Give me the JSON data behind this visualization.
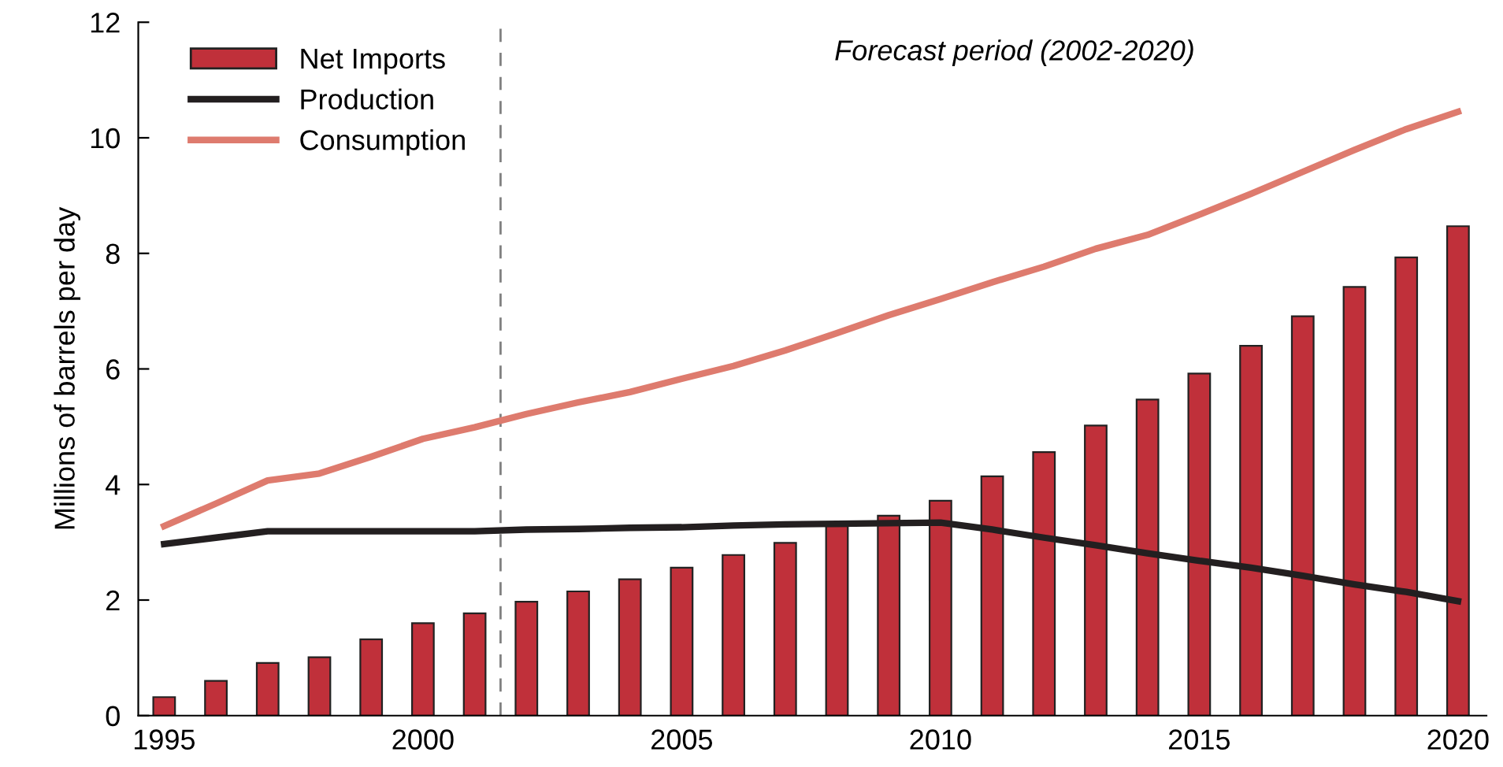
{
  "chart_data": {
    "type": "bar",
    "ylabel": "Millions of barrels per day",
    "x": [
      1995,
      1996,
      1997,
      1998,
      1999,
      2000,
      2001,
      2002,
      2003,
      2004,
      2005,
      2006,
      2007,
      2008,
      2009,
      2010,
      2011,
      2012,
      2013,
      2014,
      2015,
      2016,
      2017,
      2018,
      2019,
      2020
    ],
    "series": [
      {
        "name": "Net Imports",
        "type": "bar",
        "color": "#c0303a",
        "values": [
          0.32,
          0.6,
          0.91,
          1.01,
          1.32,
          1.6,
          1.77,
          1.97,
          2.15,
          2.36,
          2.56,
          2.78,
          2.99,
          3.28,
          3.46,
          3.72,
          4.14,
          4.56,
          5.02,
          5.47,
          5.92,
          6.4,
          6.91,
          7.42,
          7.93,
          8.47
        ]
      },
      {
        "name": "Production",
        "type": "line",
        "color": "#231f20",
        "values": [
          2.97,
          3.08,
          3.19,
          3.19,
          3.19,
          3.19,
          3.19,
          3.22,
          3.23,
          3.25,
          3.26,
          3.29,
          3.31,
          3.32,
          3.33,
          3.34,
          3.22,
          3.08,
          2.95,
          2.81,
          2.68,
          2.56,
          2.42,
          2.27,
          2.14,
          1.98
        ]
      },
      {
        "name": "Consumption",
        "type": "line",
        "color": "#de7b6e",
        "values": [
          3.28,
          3.67,
          4.07,
          4.19,
          4.48,
          4.79,
          4.99,
          5.22,
          5.42,
          5.6,
          5.83,
          6.05,
          6.32,
          6.62,
          6.93,
          7.21,
          7.5,
          7.77,
          8.08,
          8.32,
          8.67,
          9.03,
          9.41,
          9.79,
          10.15,
          10.45
        ]
      }
    ],
    "xlim": [
      1994.5,
      2020.55
    ],
    "xticks": [
      1995,
      2000,
      2005,
      2010,
      2015,
      2020
    ],
    "ylim": [
      0,
      12
    ],
    "yticks": [
      0,
      2,
      4,
      6,
      8,
      10,
      12
    ],
    "ref_lines": [
      {
        "axis": "x",
        "value": 2001.5,
        "label": null,
        "color": "#808080",
        "line_style": "dashed"
      }
    ],
    "annotations": [
      "Forecast period (2002-2020)"
    ],
    "legend": "top left",
    "grid": false
  }
}
